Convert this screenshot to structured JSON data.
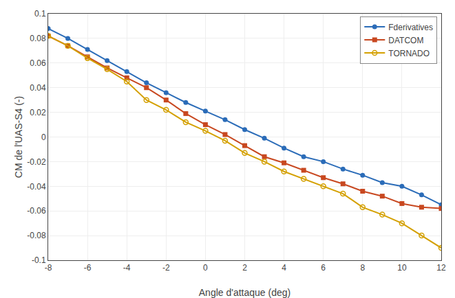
{
  "chart_data": {
    "type": "line",
    "x": [
      -8,
      -7,
      -6,
      -5,
      -4,
      -3,
      -2,
      -1,
      0,
      1,
      2,
      3,
      4,
      5,
      6,
      7,
      8,
      9,
      10,
      11,
      12
    ],
    "series": [
      {
        "name": "Fderivatives",
        "color": "#2B6CB8",
        "marker": "circle",
        "values": [
          0.088,
          0.08,
          0.071,
          0.062,
          0.053,
          0.044,
          0.036,
          0.028,
          0.021,
          0.014,
          0.006,
          -0.001,
          -0.009,
          -0.016,
          -0.02,
          -0.026,
          -0.031,
          -0.037,
          -0.04,
          -0.047,
          -0.055
        ]
      },
      {
        "name": "DATCOM",
        "color": "#C84820",
        "marker": "square",
        "values": [
          0.082,
          0.074,
          0.065,
          0.056,
          0.048,
          0.04,
          0.03,
          0.019,
          0.01,
          0.002,
          -0.007,
          -0.016,
          -0.021,
          -0.027,
          -0.033,
          -0.038,
          -0.044,
          -0.048,
          -0.054,
          -0.057,
          -0.058
        ]
      },
      {
        "name": "TORNADO",
        "color": "#D4A000",
        "marker": "open circle",
        "values": [
          0.082,
          0.074,
          0.064,
          0.055,
          0.045,
          0.03,
          0.022,
          0.012,
          0.005,
          -0.003,
          -0.013,
          -0.02,
          -0.028,
          -0.034,
          -0.04,
          -0.046,
          -0.057,
          -0.063,
          -0.07,
          -0.08,
          -0.09
        ]
      }
    ],
    "x_label": "Angle d'attaque (deg)",
    "y_label": "CM de l'UAS-S4 (-)",
    "xlim": [
      -8,
      12
    ],
    "ylim": [
      -0.1,
      0.1
    ],
    "xticks": [
      -8,
      -6,
      -4,
      -2,
      0,
      2,
      4,
      6,
      8,
      10,
      12
    ],
    "yticks": [
      -0.1,
      -0.08,
      -0.06,
      -0.04,
      -0.02,
      0,
      0.02,
      0.04,
      0.06,
      0.08,
      0.1
    ],
    "grid": true,
    "legend": "upper right"
  }
}
